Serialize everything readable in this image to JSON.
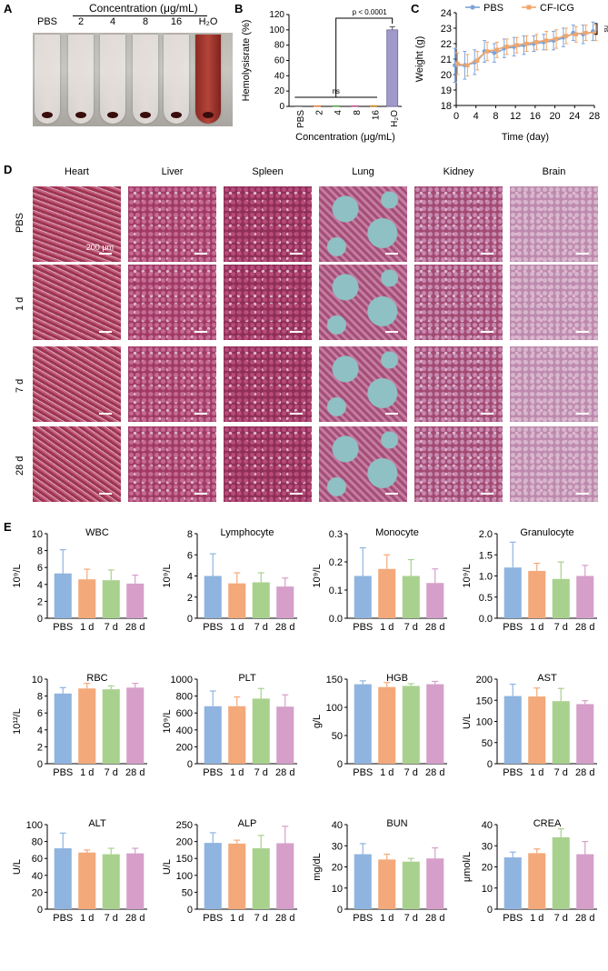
{
  "panels": {
    "A": "A",
    "B": "B",
    "C": "C",
    "D": "D",
    "E": "E"
  },
  "panelA": {
    "header": "Concentration (μg/mL)",
    "tube_labels": [
      "PBS",
      "2",
      "4",
      "8",
      "16",
      "H₂O"
    ]
  },
  "chart_data": [
    {
      "id": "B",
      "type": "bar",
      "categories": [
        "PBS",
        "2",
        "4",
        "8",
        "16",
        "H₂O"
      ],
      "values": [
        0.2,
        0.3,
        0.3,
        0.4,
        0.5,
        100
      ],
      "errors": [
        0.1,
        0.1,
        0.1,
        0.1,
        0.1,
        4
      ],
      "ylabel": "Hemolysisrate (%)",
      "xlabel": "Concentration (μg/mL)",
      "ylim": [
        0,
        120
      ],
      "yticks": [
        0,
        20,
        40,
        60,
        80,
        100,
        120
      ],
      "annotations": [
        "ns",
        "p < 0.0001"
      ],
      "colors": [
        "#6a6a6a",
        "#e07a2e",
        "#4d9e3f",
        "#c24a8f",
        "#d4861c",
        "#8e88c0"
      ]
    },
    {
      "id": "C",
      "type": "line",
      "x": [
        0,
        2,
        4,
        6,
        8,
        10,
        12,
        14,
        16,
        18,
        20,
        22,
        24,
        26,
        28
      ],
      "series": [
        {
          "name": "PBS",
          "color": "#7da4d9",
          "values": [
            20.6,
            20.6,
            20.8,
            21.5,
            21.4,
            21.7,
            21.8,
            21.9,
            22.0,
            22.1,
            22.2,
            22.4,
            22.7,
            22.6,
            22.8
          ],
          "errors": [
            1.1,
            0.9,
            0.8,
            0.7,
            0.6,
            0.6,
            0.6,
            0.6,
            0.5,
            0.5,
            0.6,
            0.6,
            0.5,
            0.6,
            0.6
          ]
        },
        {
          "name": "CF-ICG",
          "color": "#f0a66a",
          "values": [
            20.7,
            20.6,
            20.9,
            21.5,
            21.6,
            21.8,
            21.9,
            22.0,
            22.1,
            22.2,
            22.3,
            22.5,
            22.6,
            22.7,
            22.7
          ],
          "errors": [
            0.7,
            0.7,
            0.6,
            0.6,
            0.5,
            0.5,
            0.5,
            0.5,
            0.5,
            0.6,
            0.6,
            0.5,
            0.5,
            0.5,
            0.5
          ]
        }
      ],
      "xlabel": "Time (day)",
      "ylabel": "Weight (g)",
      "xlim": [
        0,
        28
      ],
      "ylim": [
        18,
        24
      ],
      "xticks": [
        0,
        4,
        8,
        12,
        16,
        20,
        24,
        28
      ],
      "yticks": [
        18,
        19,
        20,
        21,
        22,
        23,
        24
      ],
      "annotation": "ns",
      "legend": "top"
    },
    {
      "id": "WBC",
      "type": "bar",
      "title": "WBC",
      "ylabel": "10⁹/L",
      "ylim": [
        0,
        10
      ],
      "yticks": [
        0,
        2,
        4,
        6,
        8,
        10
      ],
      "yticklabels": [
        "0",
        "2",
        "4",
        "6",
        "8",
        "10"
      ],
      "categories": [
        "PBS",
        "1 d",
        "7 d",
        "28 d"
      ],
      "values": [
        5.3,
        4.6,
        4.5,
        4.1
      ],
      "errors": [
        2.8,
        1.2,
        1.2,
        1.0
      ]
    },
    {
      "id": "Lymphocyte",
      "type": "bar",
      "title": "Lymphocyte",
      "ylabel": "10⁹/L",
      "ylim": [
        0,
        8
      ],
      "yticks": [
        0,
        2,
        4,
        6,
        8
      ],
      "yticklabels": [
        "0",
        "2",
        "4",
        "6",
        "8"
      ],
      "categories": [
        "PBS",
        "1 d",
        "7 d",
        "28 d"
      ],
      "values": [
        4.0,
        3.3,
        3.4,
        3.0
      ],
      "errors": [
        2.1,
        1.0,
        0.9,
        0.8
      ]
    },
    {
      "id": "Monocyte",
      "type": "bar",
      "title": "Monocyte",
      "ylabel": "10⁹/L",
      "ylim": [
        0,
        0.3
      ],
      "yticks": [
        0,
        0.1,
        0.2,
        0.3
      ],
      "yticklabels": [
        "0.0",
        "0.1",
        "0.2",
        "0.3"
      ],
      "categories": [
        "PBS",
        "1 d",
        "7 d",
        "28 d"
      ],
      "values": [
        0.15,
        0.175,
        0.15,
        0.125
      ],
      "errors": [
        0.1,
        0.05,
        0.058,
        0.05
      ]
    },
    {
      "id": "Granulocyte",
      "type": "bar",
      "title": "Granulocyte",
      "ylabel": "10⁹/L",
      "ylim": [
        0,
        2
      ],
      "yticks": [
        0,
        0.5,
        1,
        1.5,
        2
      ],
      "yticklabels": [
        "0.0",
        "0.5",
        "1.0",
        "1.5",
        "2.0"
      ],
      "categories": [
        "PBS",
        "1 d",
        "7 d",
        "28 d"
      ],
      "values": [
        1.2,
        1.12,
        0.93,
        1.0
      ],
      "errors": [
        0.6,
        0.18,
        0.4,
        0.25
      ]
    },
    {
      "id": "RBC",
      "type": "bar",
      "title": "RBC",
      "ylabel": "10¹²/L",
      "ylim": [
        0,
        10
      ],
      "yticks": [
        0,
        2,
        4,
        6,
        8,
        10
      ],
      "yticklabels": [
        "0",
        "2",
        "4",
        "6",
        "8",
        "10"
      ],
      "categories": [
        "PBS",
        "1 d",
        "7 d",
        "28 d"
      ],
      "values": [
        8.3,
        8.9,
        8.8,
        9.0
      ],
      "errors": [
        0.7,
        0.6,
        0.4,
        0.5
      ]
    },
    {
      "id": "PLT",
      "type": "bar",
      "title": "PLT",
      "ylabel": "10⁹/L",
      "ylim": [
        0,
        1000
      ],
      "yticks": [
        0,
        200,
        400,
        600,
        800,
        1000
      ],
      "yticklabels": [
        "0",
        "200",
        "400",
        "600",
        "800",
        "1000"
      ],
      "categories": [
        "PBS",
        "1 d",
        "7 d",
        "28 d"
      ],
      "values": [
        680,
        680,
        770,
        675
      ],
      "errors": [
        180,
        110,
        120,
        140
      ]
    },
    {
      "id": "HGB",
      "type": "bar",
      "title": "HGB",
      "ylabel": "g/L",
      "ylim": [
        0,
        150
      ],
      "yticks": [
        0,
        50,
        100,
        150
      ],
      "yticklabels": [
        "0",
        "50",
        "100",
        "150"
      ],
      "categories": [
        "PBS",
        "1 d",
        "7 d",
        "28 d"
      ],
      "values": [
        141,
        136,
        138,
        141
      ],
      "errors": [
        6,
        8,
        4,
        5
      ]
    },
    {
      "id": "AST",
      "type": "bar",
      "title": "AST",
      "ylabel": "U/L",
      "ylim": [
        0,
        200
      ],
      "yticks": [
        0,
        50,
        100,
        150,
        200
      ],
      "yticklabels": [
        "0",
        "50",
        "100",
        "150",
        "200"
      ],
      "categories": [
        "PBS",
        "1 d",
        "7 d",
        "28 d"
      ],
      "values": [
        160,
        159,
        148,
        141
      ],
      "errors": [
        28,
        20,
        30,
        8
      ]
    },
    {
      "id": "ALT",
      "type": "bar",
      "title": "ALT",
      "ylabel": "U/L",
      "ylim": [
        0,
        100
      ],
      "yticks": [
        0,
        20,
        40,
        60,
        80,
        100
      ],
      "yticklabels": [
        "0",
        "20",
        "40",
        "60",
        "80",
        "100"
      ],
      "categories": [
        "PBS",
        "1 d",
        "7 d",
        "28 d"
      ],
      "values": [
        72,
        67,
        65,
        66
      ],
      "errors": [
        18,
        3,
        7,
        6
      ]
    },
    {
      "id": "ALP",
      "type": "bar",
      "title": "ALP",
      "ylabel": "U/L",
      "ylim": [
        0,
        250
      ],
      "yticks": [
        0,
        50,
        100,
        150,
        200,
        250
      ],
      "yticklabels": [
        "0",
        "50",
        "100",
        "150",
        "200",
        "250"
      ],
      "categories": [
        "PBS",
        "1 d",
        "7 d",
        "28 d"
      ],
      "values": [
        196,
        194,
        180,
        195
      ],
      "errors": [
        30,
        10,
        38,
        50
      ]
    },
    {
      "id": "BUN",
      "type": "bar",
      "title": "BUN",
      "ylabel": "mg/dL",
      "ylim": [
        0,
        40
      ],
      "yticks": [
        0,
        10,
        20,
        30,
        40
      ],
      "yticklabels": [
        "0",
        "10",
        "20",
        "30",
        "40"
      ],
      "categories": [
        "PBS",
        "1 d",
        "7 d",
        "28 d"
      ],
      "values": [
        26,
        23.5,
        22.5,
        24
      ],
      "errors": [
        5,
        2.5,
        1.5,
        5
      ]
    },
    {
      "id": "CREA",
      "type": "bar",
      "title": "CREA",
      "ylabel": "μmol/L",
      "ylim": [
        0,
        40
      ],
      "yticks": [
        0,
        10,
        20,
        30,
        40
      ],
      "yticklabels": [
        "0",
        "10",
        "20",
        "30",
        "40"
      ],
      "categories": [
        "PBS",
        "1 d",
        "7 d",
        "28 d"
      ],
      "values": [
        24.5,
        26.5,
        34,
        26
      ],
      "errors": [
        2.5,
        2,
        4,
        6
      ]
    }
  ],
  "panelE_colors": [
    "#8fb4df",
    "#f3a97a",
    "#a9d18e",
    "#d59fc9"
  ],
  "panelD": {
    "columns": [
      "Heart",
      "Liver",
      "Spleen",
      "Lung",
      "Kidney",
      "Brain"
    ],
    "rows": [
      "PBS",
      "1 d",
      "7 d",
      "28 d"
    ],
    "scale_label": "200 μm"
  }
}
